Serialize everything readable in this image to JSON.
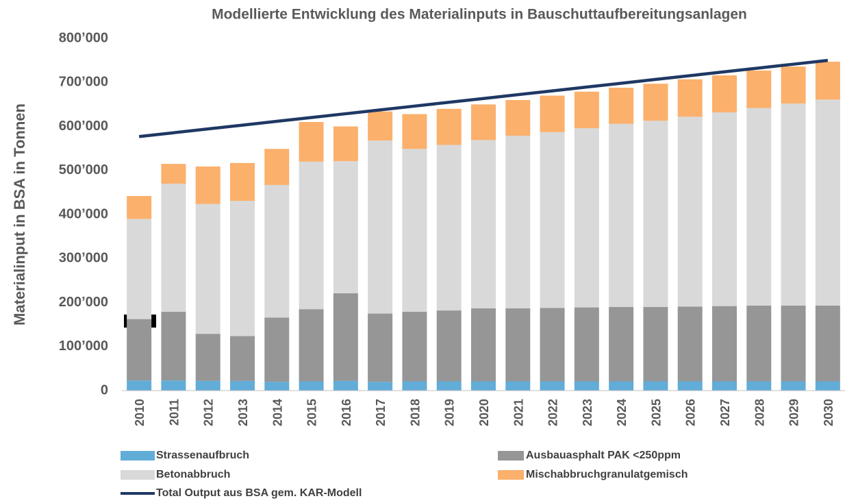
{
  "chart_data": {
    "type": "bar",
    "stacked": true,
    "title": "Modellierte Entwicklung des Materialinputs in Bauschuttaufbereitungsanlagen",
    "ylabel": "Materialinput in BSA in Tonnen",
    "categories": [
      "2010",
      "2011",
      "2012",
      "2013",
      "2014",
      "2015",
      "2016",
      "2017",
      "2018",
      "2019",
      "2020",
      "2021",
      "2022",
      "2023",
      "2024",
      "2025",
      "2026",
      "2027",
      "2028",
      "2029",
      "2030"
    ],
    "series": [
      {
        "name": "Strassenaufbruch",
        "color": "#62acd8",
        "type": "bar",
        "values": [
          23000,
          23000,
          22000,
          22000,
          20000,
          21000,
          22000,
          20000,
          21000,
          21000,
          21000,
          21000,
          21000,
          21000,
          21000,
          21000,
          21000,
          21000,
          21000,
          21000,
          21000
        ]
      },
      {
        "name": "Ausbauasphalt PAK <250ppm",
        "color": "#969696",
        "type": "bar",
        "values": [
          139000,
          156000,
          107000,
          102000,
          146000,
          164000,
          199000,
          155000,
          158000,
          161000,
          166000,
          166000,
          167000,
          168000,
          169000,
          169000,
          170000,
          171000,
          172000,
          172000,
          172000
        ]
      },
      {
        "name": "Betonabbruch",
        "color": "#d9d9d9",
        "type": "bar",
        "values": [
          228000,
          291000,
          295000,
          307000,
          301000,
          335000,
          300000,
          393000,
          370000,
          376000,
          382000,
          392000,
          399000,
          407000,
          416000,
          423000,
          431000,
          440000,
          449000,
          459000,
          468000
        ]
      },
      {
        "name": "Mischabbruchgranulatgemisch",
        "color": "#fbb06c",
        "type": "bar",
        "values": [
          52000,
          45000,
          85000,
          86000,
          82000,
          90000,
          79000,
          66000,
          79000,
          82000,
          81000,
          81000,
          83000,
          83000,
          82000,
          84000,
          85000,
          84000,
          85000,
          84000,
          86000
        ]
      },
      {
        "name": "Total Output aus  BSA gem. KAR-Modell",
        "color": "#1f3864",
        "type": "line",
        "values": [
          577000,
          585650,
          594300,
          602950,
          611600,
          620250,
          628900,
          637550,
          646200,
          654850,
          663500,
          672150,
          680800,
          689450,
          698100,
          706750,
          715400,
          724050,
          732700,
          741350,
          750000
        ]
      }
    ],
    "ylim": [
      0,
      800000
    ],
    "yticks": [
      0,
      {
        "value": 100000,
        "label": "100’000"
      },
      {
        "value": 200000,
        "label": "200’000"
      },
      {
        "value": 300000,
        "label": "300’000"
      },
      {
        "value": 400000,
        "label": "400’000"
      },
      {
        "value": 500000,
        "label": "500’000"
      },
      {
        "value": 600000,
        "label": "600’000"
      },
      {
        "value": 700000,
        "label": "700’000"
      },
      {
        "value": 800000,
        "label": "800’000"
      }
    ],
    "grid": false
  }
}
